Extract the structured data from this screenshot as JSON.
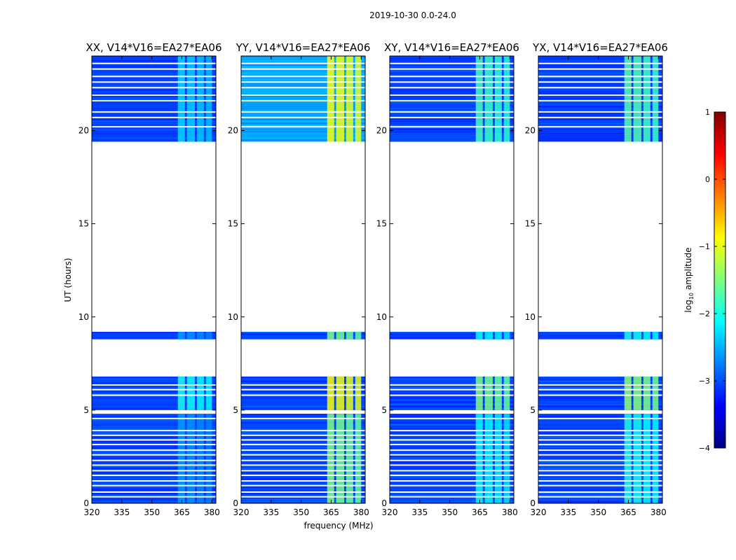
{
  "chart_data": {
    "type": "heatmap",
    "title": "2019-10-30 0.0-24.0",
    "xlabel": "frequency (MHz)",
    "ylabel": "UT (hours)",
    "xlim": [
      320,
      382
    ],
    "ylim": [
      0,
      24
    ],
    "xticks": [
      320,
      335,
      350,
      365,
      380
    ],
    "yticks": [
      0,
      5,
      10,
      15,
      20
    ],
    "colorbar": {
      "label": "log10 amplitude",
      "label_base": "log",
      "label_sub": "10",
      "label_rest": " amplitude",
      "range": [
        -4,
        1
      ],
      "ticks": [
        "1",
        "0",
        "−1",
        "−2",
        "−3",
        "−4"
      ],
      "colormap": "jet"
    },
    "panels": [
      {
        "title": "XX, V14*V16=EA27*EA06",
        "polarization": "XX",
        "rfi_level": -2.0
      },
      {
        "title": "YY, V14*V16=EA27*EA06",
        "polarization": "YY",
        "rfi_level": -0.9
      },
      {
        "title": "XY, V14*V16=EA27*EA06",
        "polarization": "XY",
        "rfi_level": -1.5
      },
      {
        "title": "YX, V14*V16=EA27*EA06",
        "polarization": "YX",
        "rfi_level": -1.4
      }
    ],
    "data_time_ranges_hours": [
      [
        0,
        4.8
      ],
      [
        5.0,
        6.8
      ],
      [
        8.8,
        9.2
      ],
      [
        19.4,
        24.0
      ]
    ],
    "rfi_band_mhz": [
      [
        363,
        366.5
      ],
      [
        367.5,
        371.5
      ],
      [
        372.5,
        376
      ],
      [
        377,
        380
      ]
    ]
  }
}
